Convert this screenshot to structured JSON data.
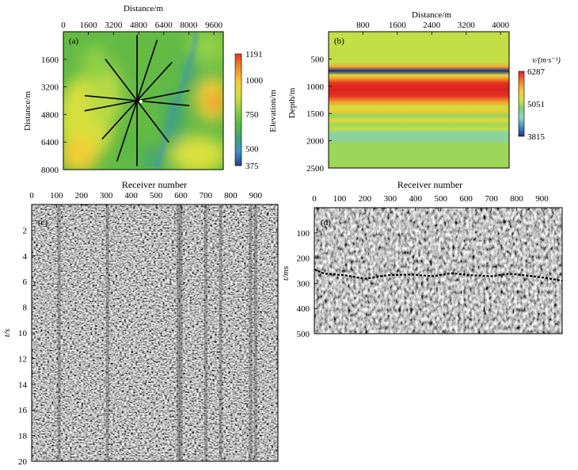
{
  "chart_data": [
    {
      "panel": "(a)",
      "type": "heatmap",
      "title": "",
      "xlabel": "Distance/m",
      "ylabel": "Distance/m",
      "x_ticks": [
        0,
        1600,
        3200,
        4800,
        6400,
        8000,
        9600
      ],
      "y_ticks": [
        1600,
        3200,
        4800,
        6400,
        8000
      ],
      "xlim": [
        0,
        10200
      ],
      "ylim": [
        0,
        8000
      ],
      "colorbar": {
        "label": "Elevation/m",
        "ticks": [
          1191,
          1000,
          750,
          500,
          375
        ],
        "min": 375,
        "max": 1191
      },
      "colormap": [
        "#2c3d8e",
        "#3f8fc0",
        "#3fa573",
        "#5ab840",
        "#8fcf45",
        "#d8e03e",
        "#f3ce36",
        "#f08c2c",
        "#e23a22"
      ],
      "survey_center": {
        "x": 4700,
        "y": 4000
      },
      "survey_lines": [
        {
          "azimuth_deg": 95,
          "length_m": 6700
        },
        {
          "azimuth_deg": 20,
          "length_m": 7500
        },
        {
          "azimuth_deg": 140,
          "length_m": 6300
        },
        {
          "azimuth_deg": 45,
          "length_m": 6300
        },
        {
          "azimuth_deg": 80,
          "length_m": 6800
        },
        {
          "azimuth_deg": 0,
          "length_m": 7600
        }
      ]
    },
    {
      "panel": "(b)",
      "type": "heatmap",
      "title": "",
      "xlabel": "Distance/m",
      "ylabel": "Depth/m",
      "x_ticks": [
        800,
        1600,
        2400,
        3200,
        4000
      ],
      "y_ticks": [
        500,
        1000,
        1500,
        2000,
        2500
      ],
      "xlim": [
        0,
        4200
      ],
      "ylim": [
        0,
        2500
      ],
      "colorbar": {
        "label": "v/(m·s⁻¹)",
        "ticks": [
          6287,
          5051,
          3815
        ],
        "min": 3815,
        "max": 6287
      },
      "colormap": [
        "#1d2f7e",
        "#3d8fc6",
        "#8fd5c4",
        "#7ed06a",
        "#d8e23c",
        "#f7c334",
        "#f07a2a",
        "#e01e1e"
      ],
      "velocity_profile": [
        {
          "depth": 0,
          "v": 5150
        },
        {
          "depth": 560,
          "v": 5150
        },
        {
          "depth": 640,
          "v": 5700
        },
        {
          "depth": 720,
          "v": 3815
        },
        {
          "depth": 800,
          "v": 5300
        },
        {
          "depth": 860,
          "v": 5800
        },
        {
          "depth": 940,
          "v": 6200
        },
        {
          "depth": 1060,
          "v": 6287
        },
        {
          "depth": 1180,
          "v": 6200
        },
        {
          "depth": 1290,
          "v": 5750
        },
        {
          "depth": 1380,
          "v": 5200
        },
        {
          "depth": 1460,
          "v": 5500
        },
        {
          "depth": 1540,
          "v": 4950
        },
        {
          "depth": 1620,
          "v": 5350
        },
        {
          "depth": 1700,
          "v": 5000
        },
        {
          "depth": 1780,
          "v": 5150
        },
        {
          "depth": 1860,
          "v": 4650
        },
        {
          "depth": 1960,
          "v": 4650
        },
        {
          "depth": 2060,
          "v": 5000
        },
        {
          "depth": 2500,
          "v": 5000
        }
      ]
    },
    {
      "panel": "(c)",
      "type": "heatmap",
      "title": "",
      "xlabel": "Receiver number",
      "ylabel": "t/s",
      "x_ticks": [
        0,
        100,
        200,
        300,
        400,
        500,
        600,
        700,
        800,
        900
      ],
      "y_ticks": [
        2,
        4,
        6,
        8,
        10,
        12,
        14,
        16,
        18,
        20
      ],
      "xlim": [
        0,
        990
      ],
      "ylim": [
        0,
        20
      ],
      "noisy_receivers": [
        110,
        305,
        590,
        600,
        700,
        760,
        880,
        900
      ]
    },
    {
      "panel": "(d)",
      "type": "heatmap",
      "title": "",
      "xlabel": "Receiver number",
      "ylabel": "t/ms",
      "x_ticks": [
        0,
        100,
        200,
        300,
        400,
        500,
        600,
        700,
        800,
        900
      ],
      "y_ticks": [
        100,
        200,
        300,
        400,
        500
      ],
      "xlim": [
        0,
        980
      ],
      "ylim": [
        0,
        500
      ],
      "first_arrival_ms": [
        {
          "receiver": 0,
          "t": 245
        },
        {
          "receiver": 40,
          "t": 262
        },
        {
          "receiver": 120,
          "t": 268
        },
        {
          "receiver": 200,
          "t": 282
        },
        {
          "receiver": 290,
          "t": 268
        },
        {
          "receiver": 380,
          "t": 265
        },
        {
          "receiver": 470,
          "t": 272
        },
        {
          "receiver": 540,
          "t": 260
        },
        {
          "receiver": 620,
          "t": 268
        },
        {
          "receiver": 700,
          "t": 272
        },
        {
          "receiver": 770,
          "t": 262
        },
        {
          "receiver": 850,
          "t": 270
        },
        {
          "receiver": 920,
          "t": 280
        },
        {
          "receiver": 980,
          "t": 290
        }
      ]
    }
  ]
}
